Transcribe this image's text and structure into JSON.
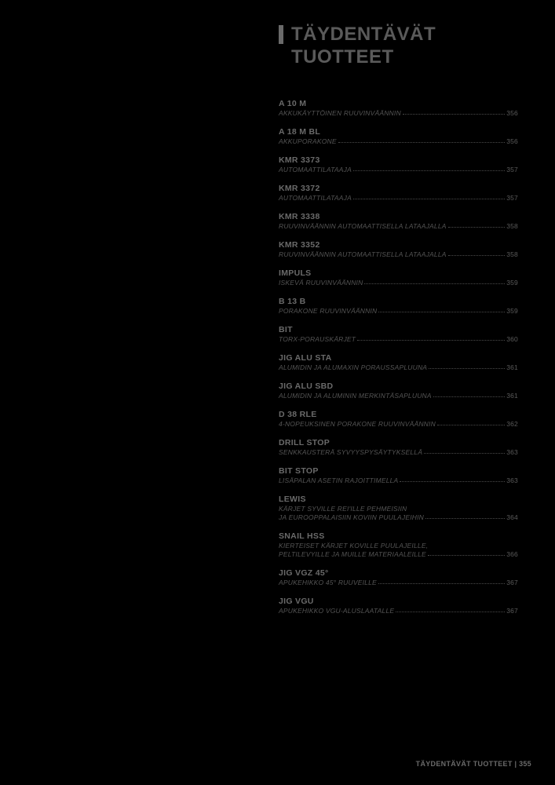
{
  "title_line1": "TÄYDENTÄVÄT",
  "title_line2": "TUOTTEET",
  "entries": [
    {
      "code": "A 10 M",
      "desc": "AKKUKÄYTTÖINEN RUUVINVÄÄNNIN",
      "page": "356"
    },
    {
      "code": "A 18 M BL",
      "desc": "AKKUPORAKONE",
      "page": "356"
    },
    {
      "code": "KMR 3373",
      "desc": "AUTOMAATTILATAAJA",
      "page": "357"
    },
    {
      "code": "KMR 3372",
      "desc": "AUTOMAATTILATAAJA",
      "page": "357"
    },
    {
      "code": "KMR 3338",
      "desc": "RUUVINVÄÄNNIN AUTOMAATTISELLA LATAAJALLA",
      "page": "358"
    },
    {
      "code": "KMR 3352",
      "desc": "RUUVINVÄÄNNIN AUTOMAATTISELLA LATAAJALLA",
      "page": "358"
    },
    {
      "code": "IMPULS",
      "desc": "ISKEVÄ RUUVINVÄÄNNIN",
      "page": "359"
    },
    {
      "code": "B 13 B",
      "desc": "PORAKONE RUUVINVÄÄNNIN",
      "page": "359"
    },
    {
      "code": "BIT",
      "desc": "TORX-PORAUSKÄRJET",
      "page": "360"
    },
    {
      "code": "JIG ALU STA",
      "desc": "ALUMIDIN JA ALUMAXIN PORAUSSAPLUUNA",
      "page": "361"
    },
    {
      "code": "JIG ALU SBD",
      "desc": "ALUMIDIN JA ALUMININ MERKINTÄSAPLUUNA",
      "page": "361"
    },
    {
      "code": "D 38 RLE",
      "desc": "4-NOPEUKSINEN PORAKONE RUUVINVÄÄNNIN",
      "page": "362"
    },
    {
      "code": "DRILL STOP",
      "desc": "SENKKAUSTERÄ SYVYYSPYSÄYTYKSELLÄ",
      "page": "363"
    },
    {
      "code": "BIT STOP",
      "desc": "LISÄPALAN ASETIN RAJOITTIMELLA",
      "page": "363"
    },
    {
      "code": "LEWIS",
      "desc": "KÄRJET SYVILLE REI'ILLE PEHMEISIIN\nJA EUROOPPALAISIIN KOVIIN PUULAJEIHIN",
      "page": "364"
    },
    {
      "code": "SNAIL HSS",
      "desc": "KIERTEISET KÄRJET KOVILLE PUULAJEILLE,\nPELTILEVYILLE JA MUILLE MATERIAALEILLE",
      "page": "366"
    },
    {
      "code": "JIG VGZ 45°",
      "desc": "APUKEHIKKO 45° RUUVEILLE",
      "page": "367"
    },
    {
      "code": "JIG VGU",
      "desc": "APUKEHIKKO VGU-ALUSLAATALLE",
      "page": "367"
    }
  ],
  "footer": "TÄYDENTÄVÄT TUOTTEET  |  355",
  "colors": {
    "background": "#000000",
    "text": "#5a5a5a",
    "bar": "#6a6a6a"
  }
}
